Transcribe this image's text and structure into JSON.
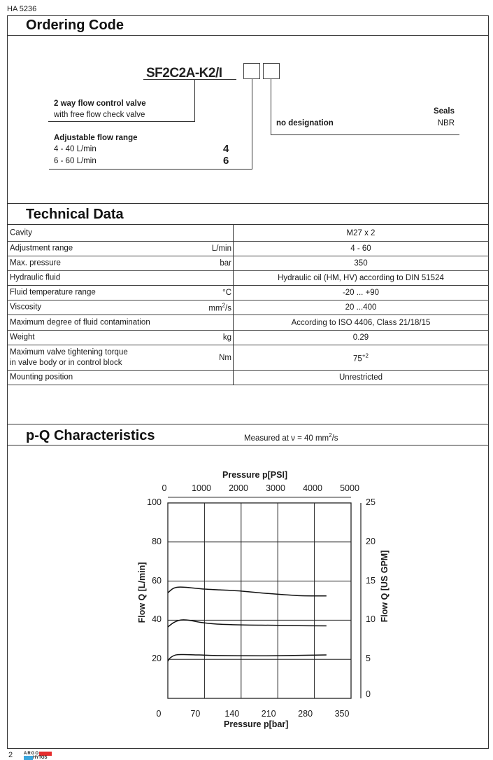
{
  "doc_number": "HA 5236",
  "page_number": "2",
  "logo": {
    "text": "ARGO HYTOS",
    "colors": [
      "#e52d2d",
      "#3aa6dd"
    ]
  },
  "ordering_code": {
    "title": "Ordering Code",
    "code": "SF2C2A-K2/I",
    "type_desc_bold": "2 way flow control valve",
    "type_desc": "with free flow check valve",
    "flow_title": "Adjustable flow range",
    "flow_options": [
      {
        "label": "4 - 40 L/min",
        "code": "4"
      },
      {
        "label": "6 - 60 L/min",
        "code": "6"
      }
    ],
    "seals_title": "Seals",
    "seals_option": {
      "label": "no designation",
      "code": "NBR"
    }
  },
  "technical_data": {
    "title": "Technical Data",
    "rows": [
      {
        "label": "Cavity",
        "unit": "",
        "value": "M27 x 2"
      },
      {
        "label": "Adjustment range",
        "unit": "L/min",
        "value": "4 - 60"
      },
      {
        "label": "Max. pressure",
        "unit": "bar",
        "value": "350"
      },
      {
        "label": "Hydraulic fluid",
        "unit": "",
        "value": "Hydraulic oil (HM, HV) according to DIN 51524"
      },
      {
        "label": "Fluid temperature range",
        "unit": "°C",
        "value": "-20 ... +90"
      },
      {
        "label": "Viscosity",
        "unit": "mm",
        "unit_sup": "2",
        "unit_tail": "/s",
        "value": "20 ...400"
      },
      {
        "label": "Maximum degree of fluid contamination",
        "unit": "",
        "value": "According to ISO 4406,  Class 21/18/15"
      },
      {
        "label": "Weight",
        "unit": "kg",
        "value": "0.29"
      },
      {
        "label": "Maximum valve tightening torque",
        "label2": "in valve body or in control block",
        "unit": "Nm",
        "value": "75",
        "value_sup": "+2"
      },
      {
        "label": "Mounting position",
        "unit": "",
        "value": "Unrestricted"
      }
    ]
  },
  "pq": {
    "title": "p-Q Characteristics",
    "note": "Measured at ν = 40 mm",
    "note_sup": "2",
    "note_tail": "/s"
  },
  "chart_data": {
    "type": "line",
    "xlabel": "Pressure p[bar]",
    "x2label": "Pressure p[PSI]",
    "ylabel": "Flow Q [L/min]",
    "y2label": "Flow Q [US GPM]",
    "xlim": [
      0,
      350
    ],
    "ylim": [
      0,
      100
    ],
    "x_ticks": [
      "0",
      "70",
      "140",
      "210",
      "280",
      "350"
    ],
    "x2_ticks": [
      "0",
      "1000",
      "2000",
      "3000",
      "4000",
      "5000"
    ],
    "y_ticks": [
      "20",
      "40",
      "60",
      "80",
      "100"
    ],
    "y2_ticks": [
      "0",
      "5",
      "10",
      "15",
      "20",
      "25"
    ],
    "grid": true,
    "series": [
      {
        "x": [
          0,
          10,
          20,
          35,
          70,
          100,
          140,
          180,
          220,
          255,
          303
        ],
        "y": [
          54,
          56.2,
          56.9,
          56.8,
          55.9,
          55.5,
          54.9,
          53.9,
          53.1,
          52.5,
          52.4
        ]
      },
      {
        "x": [
          0,
          10,
          20,
          30,
          45,
          60,
          90,
          140,
          200,
          250,
          303
        ],
        "y": [
          36.5,
          38.6,
          39.8,
          40.2,
          39.8,
          39,
          38.1,
          37.6,
          37.4,
          37.2,
          37.1
        ]
      },
      {
        "x": [
          0,
          5,
          15,
          30,
          60,
          100,
          150,
          200,
          250,
          303
        ],
        "y": [
          19,
          20.8,
          22.2,
          22.4,
          22.2,
          21.9,
          21.8,
          21.8,
          22,
          22.2
        ]
      }
    ]
  }
}
